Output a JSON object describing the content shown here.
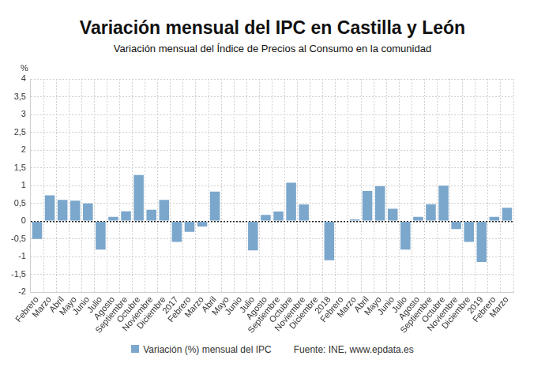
{
  "chart_data": {
    "type": "bar",
    "title": "Variación mensual del IPC en Castilla y León",
    "subtitle": "Variación mensual del Índice de Precios al Consumo en la comunidad",
    "y_label": "%",
    "source": "Fuente: INE, www.epdata.es",
    "categories": [
      "Febrero",
      "Marzo",
      "Abril",
      "Mayo",
      "Junio",
      "Julio",
      "Agosto",
      "Septiembre",
      "Octubre",
      "Noviembre",
      "Diciembre",
      "2017",
      "Febrero",
      "Marzo",
      "Abril",
      "Mayo",
      "Junio",
      "Julio",
      "Agosto",
      "Septiembre",
      "Octubre",
      "Noviembre",
      "Diciembre",
      "2018",
      "Febrero",
      "Marzo",
      "Abril",
      "Mayo",
      "Junio",
      "Julio",
      "Agosto",
      "Septiembre",
      "Octubre",
      "Noviembre",
      "Diciembre",
      "2019",
      "Febrero",
      "Marzo"
    ],
    "series": [
      {
        "name": "Variación (%) mensual del IPC",
        "color": "#7ba7cc",
        "values": [
          -0.5,
          0.73,
          0.6,
          0.58,
          0.5,
          -0.8,
          0.12,
          0.28,
          1.3,
          0.32,
          0.6,
          -0.58,
          -0.3,
          -0.15,
          0.83,
          0.0,
          -0.02,
          -0.82,
          0.18,
          0.27,
          1.08,
          0.47,
          0.02,
          -1.1,
          0.0,
          0.05,
          0.85,
          0.98,
          0.35,
          -0.8,
          0.12,
          0.48,
          1.0,
          -0.22,
          -0.58,
          -1.15,
          0.12,
          0.38
        ]
      }
    ],
    "ylim": [
      -2,
      4
    ],
    "yticks": [
      -2,
      {
        "value": -1.5,
        "label": "-1,5"
      },
      -1,
      {
        "value": -0.5,
        "label": "-0,5"
      },
      0,
      {
        "value": 0.5,
        "label": "0,5"
      },
      1,
      {
        "value": 1.5,
        "label": "1,5"
      },
      2,
      {
        "value": 2.5,
        "label": "2,5"
      },
      3,
      {
        "value": 3.5,
        "label": "3,5"
      },
      4
    ],
    "grid": true,
    "legend": "bottom"
  }
}
